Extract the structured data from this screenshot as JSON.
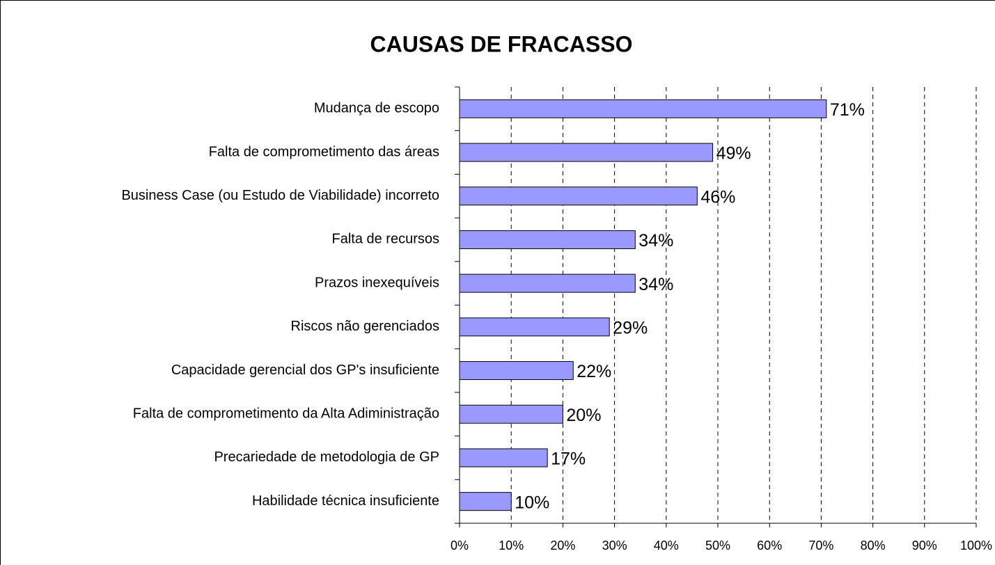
{
  "chart_data": {
    "type": "barh",
    "title": "CAUSAS DE FRACASSO",
    "categories": [
      "Mudança de escopo",
      "Falta de comprometimento das áreas",
      "Business Case (ou Estudo de Viabilidade) incorreto",
      "Falta de recursos",
      "Prazos inexequíveis",
      "Riscos não gerenciados",
      "Capacidade gerencial dos GP's insuficiente",
      "Falta de comprometimento da Alta Adiministração",
      "Precariedade de metodologia de GP",
      "Habilidade técnica insuficiente"
    ],
    "values": [
      71,
      49,
      46,
      34,
      34,
      29,
      22,
      20,
      17,
      10
    ],
    "value_labels": [
      "71%",
      "49%",
      "46%",
      "34%",
      "34%",
      "29%",
      "22%",
      "20%",
      "17%",
      "10%"
    ],
    "color": "#9999ff",
    "xlim": [
      0,
      100
    ],
    "xticks": [
      {
        "value": 0,
        "label": "0%"
      },
      {
        "value": 10,
        "label": "10%"
      },
      {
        "value": 20,
        "label": "20%"
      },
      {
        "value": 30,
        "label": "30%"
      },
      {
        "value": 40,
        "label": "40%"
      },
      {
        "value": 50,
        "label": "50%"
      },
      {
        "value": 60,
        "label": "60%"
      },
      {
        "value": 70,
        "label": "70%"
      },
      {
        "value": 80,
        "label": "80%"
      },
      {
        "value": 90,
        "label": "90%"
      },
      {
        "value": 100,
        "label": "100%"
      }
    ],
    "grid": true
  }
}
